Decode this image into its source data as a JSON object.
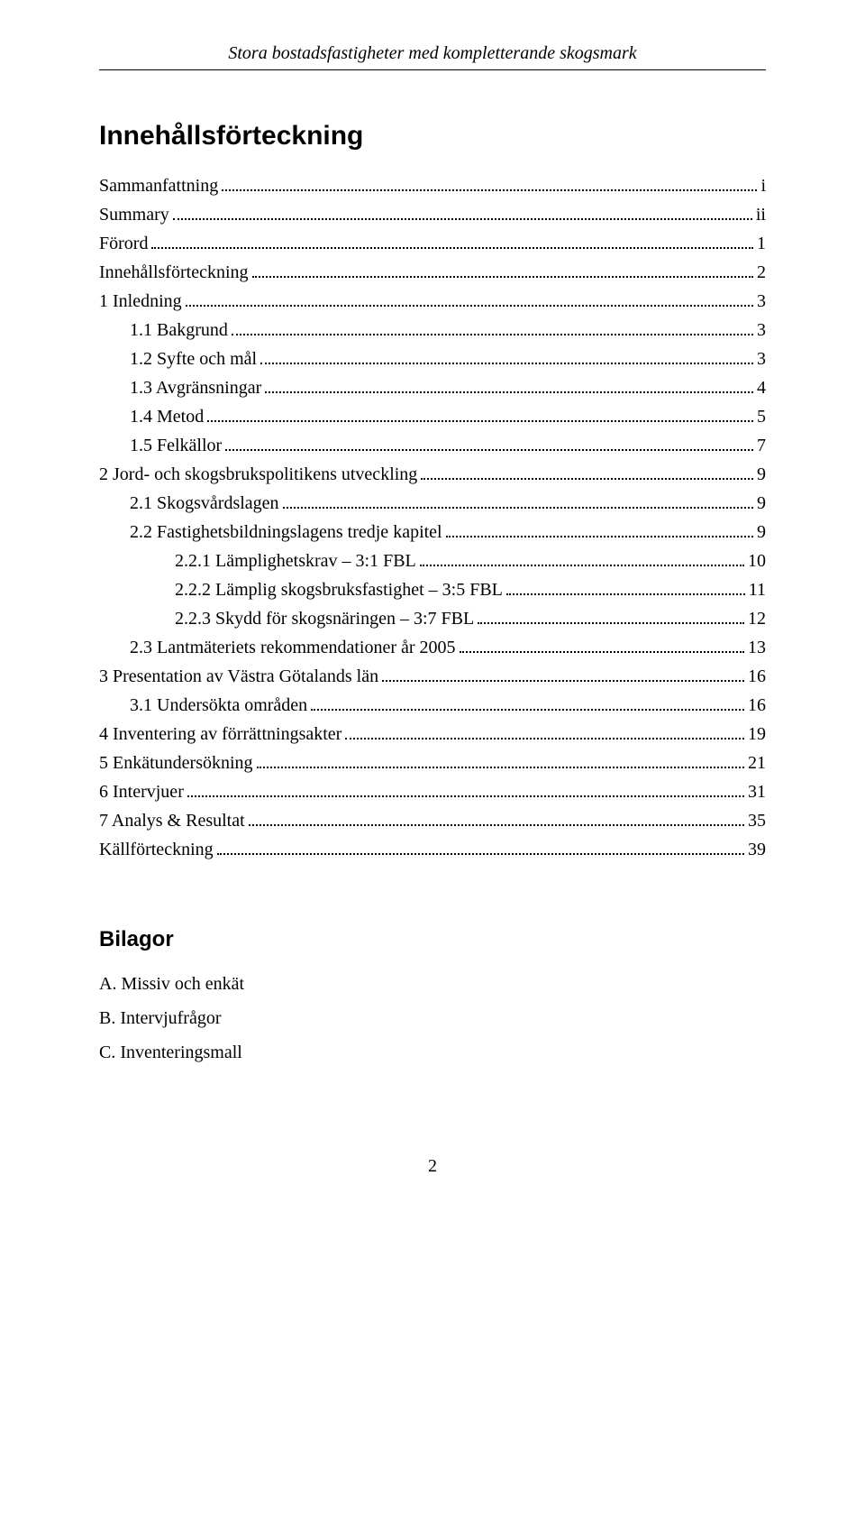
{
  "header": {
    "running_title": "Stora bostadsfastigheter med kompletterande skogsmark"
  },
  "toc": {
    "title": "Innehållsförteckning",
    "entries": [
      {
        "label": "Sammanfattning",
        "page": "i",
        "level": 0
      },
      {
        "label": "Summary",
        "page": "ii",
        "level": 0
      },
      {
        "label": "Förord",
        "page": "1",
        "level": 0
      },
      {
        "label": "Innehållsförteckning",
        "page": "2",
        "level": 0
      },
      {
        "label": "1   Inledning",
        "page": "3",
        "level": 0
      },
      {
        "label": "1.1   Bakgrund",
        "page": "3",
        "level": 1
      },
      {
        "label": "1.2   Syfte och mål",
        "page": "3",
        "level": 1
      },
      {
        "label": "1.3   Avgränsningar",
        "page": "4",
        "level": 1
      },
      {
        "label": "1.4   Metod",
        "page": "5",
        "level": 1
      },
      {
        "label": "1.5   Felkällor",
        "page": "7",
        "level": 1
      },
      {
        "label": "2   Jord- och skogsbrukspolitikens utveckling",
        "page": "9",
        "level": 0
      },
      {
        "label": "2.1   Skogsvårdslagen",
        "page": "9",
        "level": 1
      },
      {
        "label": "2.2   Fastighetsbildningslagens tredje kapitel",
        "page": "9",
        "level": 1
      },
      {
        "label": "2.2.1   Lämplighetskrav – 3:1 FBL",
        "page": "10",
        "level": 2
      },
      {
        "label": "2.2.2   Lämplig skogsbruksfastighet – 3:5 FBL",
        "page": "11",
        "level": 2
      },
      {
        "label": "2.2.3   Skydd för skogsnäringen – 3:7 FBL",
        "page": "12",
        "level": 2
      },
      {
        "label": "2.3   Lantmäteriets rekommendationer år 2005",
        "page": "13",
        "level": 1
      },
      {
        "label": "3   Presentation av Västra Götalands län",
        "page": "16",
        "level": 0
      },
      {
        "label": "3.1   Undersökta områden",
        "page": "16",
        "level": 1
      },
      {
        "label": "4   Inventering av förrättningsakter",
        "page": "19",
        "level": 0
      },
      {
        "label": "5   Enkätundersökning",
        "page": "21",
        "level": 0
      },
      {
        "label": "6   Intervjuer",
        "page": "31",
        "level": 0
      },
      {
        "label": "7   Analys & Resultat",
        "page": "35",
        "level": 0
      },
      {
        "label": "Källförteckning",
        "page": "39",
        "level": 0
      }
    ]
  },
  "appendices": {
    "title": "Bilagor",
    "items": [
      "A.  Missiv och enkät",
      "B.  Intervjufrågor",
      "C.  Inventeringsmall"
    ]
  },
  "footer": {
    "page_number": "2"
  }
}
